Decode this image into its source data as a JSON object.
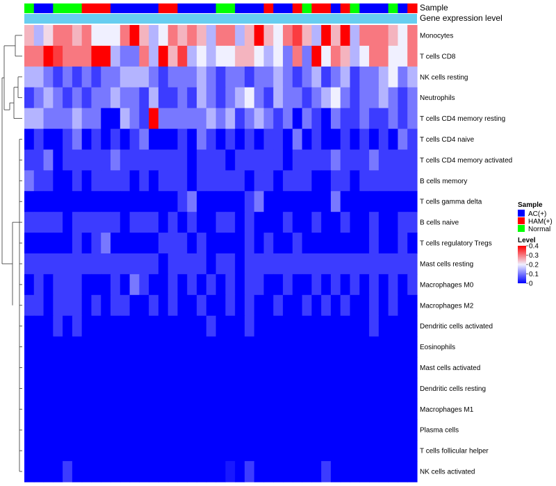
{
  "chart_data": {
    "type": "heatmap",
    "annotations": {
      "sample_label": "Sample",
      "expression_label": "Gene expression level",
      "sample_groups": [
        "N",
        "A",
        "A",
        "N",
        "N",
        "N",
        "H",
        "H",
        "H",
        "A",
        "A",
        "A",
        "A",
        "A",
        "H",
        "H",
        "A",
        "A",
        "A",
        "A",
        "N",
        "N",
        "A",
        "A",
        "A",
        "H",
        "A",
        "A",
        "H",
        "N",
        "H",
        "H",
        "A",
        "H",
        "N",
        "A",
        "A",
        "A",
        "N",
        "A",
        "H"
      ]
    },
    "rows": [
      {
        "label": "Monocytes",
        "values": [
          0.25,
          0.15,
          0.22,
          0.3,
          0.3,
          0.25,
          0.3,
          0.2,
          0.2,
          0.2,
          0.3,
          0.4,
          0.25,
          0.15,
          0.2,
          0.3,
          0.25,
          0.3,
          0.25,
          0.15,
          0.3,
          0.3,
          0.15,
          0.25,
          0.4,
          0.25,
          0.2,
          0.3,
          0.35,
          0.25,
          0.15,
          0.4,
          0.25,
          0.4,
          0.15,
          0.3,
          0.3,
          0.3,
          0.25,
          0.2,
          0.3
        ]
      },
      {
        "label": "T cells CD8",
        "values": [
          0.3,
          0.3,
          0.4,
          0.35,
          0.3,
          0.3,
          0.3,
          0.4,
          0.4,
          0.15,
          0.1,
          0.1,
          0.3,
          0.15,
          0.4,
          0.25,
          0.35,
          0.15,
          0.2,
          0.15,
          0.2,
          0.2,
          0.25,
          0.25,
          0.2,
          0.15,
          0.2,
          0.1,
          0.3,
          0.1,
          0.4,
          0.2,
          0.3,
          0.25,
          0.15,
          0.2,
          0.3,
          0.3,
          0.2,
          0.2,
          0.3
        ]
      },
      {
        "label": "NK cells resting",
        "values": [
          0.15,
          0.15,
          0.1,
          0.05,
          0.1,
          0.05,
          0.1,
          0.05,
          0.1,
          0.1,
          0.15,
          0.15,
          0.15,
          0.1,
          0.05,
          0.1,
          0.1,
          0.1,
          0.15,
          0.1,
          0.05,
          0.1,
          0.1,
          0.05,
          0.1,
          0.1,
          0.15,
          0.1,
          0.05,
          0.1,
          0.15,
          0.05,
          0.1,
          0.15,
          0.05,
          0.1,
          0.1,
          0.15,
          0.2,
          0.1,
          0.15
        ]
      },
      {
        "label": "Neutrophils",
        "values": [
          0.05,
          0.1,
          0.15,
          0.1,
          0.05,
          0.1,
          0.05,
          0.1,
          0.1,
          0.15,
          0.1,
          0.1,
          0.05,
          0.15,
          0.05,
          0.05,
          0.1,
          0.05,
          0.15,
          0.1,
          0.05,
          0.1,
          0.15,
          0.2,
          0.1,
          0.05,
          0.15,
          0.1,
          0.1,
          0.05,
          0.1,
          0.15,
          0.2,
          0.1,
          0.05,
          0.1,
          0.1,
          0.15,
          0.1,
          0.05,
          0.1
        ]
      },
      {
        "label": "T cells CD4 memory resting",
        "values": [
          0.15,
          0.15,
          0.1,
          0.1,
          0.1,
          0.15,
          0.1,
          0.1,
          0.0,
          0.0,
          0.15,
          0.1,
          0.05,
          0.4,
          0.1,
          0.1,
          0.1,
          0.1,
          0.1,
          0.15,
          0.1,
          0.15,
          0.05,
          0.1,
          0.15,
          0.1,
          0.05,
          0.1,
          0.0,
          0.1,
          0.05,
          0.0,
          0.1,
          0.05,
          0.05,
          0.1,
          0.05,
          0.05,
          0.1,
          0.05,
          0.1
        ]
      },
      {
        "label": "T cells CD4 naive",
        "values": [
          0.0,
          0.05,
          0.0,
          0.0,
          0.05,
          0.1,
          0.0,
          0.05,
          0.0,
          0.05,
          0.0,
          0.05,
          0.1,
          0.0,
          0.0,
          0.0,
          0.05,
          0.0,
          0.1,
          0.05,
          0.0,
          0.05,
          0.0,
          0.05,
          0.0,
          0.05,
          0.05,
          0.0,
          0.1,
          0.0,
          0.05,
          0.0,
          0.0,
          0.05,
          0.0,
          0.05,
          0.0,
          0.05,
          0.0,
          0.1,
          0.05
        ]
      },
      {
        "label": "T cells CD4 memory activated",
        "values": [
          0.05,
          0.05,
          0.1,
          0.0,
          0.05,
          0.05,
          0.05,
          0.05,
          0.05,
          0.1,
          0.05,
          0.05,
          0.05,
          0.05,
          0.05,
          0.05,
          0.05,
          0.0,
          0.05,
          0.05,
          0.05,
          0.0,
          0.05,
          0.05,
          0.05,
          0.05,
          0.05,
          0.0,
          0.05,
          0.05,
          0.05,
          0.05,
          0.1,
          0.05,
          0.05,
          0.05,
          0.1,
          0.05,
          0.05,
          0.05,
          0.05
        ]
      },
      {
        "label": "B cells memory",
        "values": [
          0.1,
          0.05,
          0.05,
          0.0,
          0.0,
          0.05,
          0.0,
          0.05,
          0.05,
          0.05,
          0.05,
          0.0,
          0.05,
          0.0,
          0.05,
          0.05,
          0.05,
          0.0,
          0.05,
          0.05,
          0.05,
          0.05,
          0.05,
          0.0,
          0.05,
          0.05,
          0.0,
          0.05,
          0.05,
          0.05,
          0.0,
          0.0,
          0.05,
          0.05,
          0.0,
          0.05,
          0.05,
          0.05,
          0.05,
          0.05,
          0.05
        ]
      },
      {
        "label": "T cells gamma delta",
        "values": [
          0.0,
          0.0,
          0.0,
          0.0,
          0.0,
          0.0,
          0.0,
          0.0,
          0.0,
          0.0,
          0.0,
          0.0,
          0.0,
          0.0,
          0.0,
          0.0,
          0.05,
          0.1,
          0.0,
          0.0,
          0.0,
          0.0,
          0.0,
          0.05,
          0.1,
          0.0,
          0.0,
          0.0,
          0.0,
          0.0,
          0.0,
          0.0,
          0.1,
          0.0,
          0.0,
          0.0,
          0.0,
          0.0,
          0.0,
          0.0,
          0.0
        ]
      },
      {
        "label": "B cells naive",
        "values": [
          0.05,
          0.05,
          0.05,
          0.05,
          0.0,
          0.05,
          0.05,
          0.05,
          0.05,
          0.05,
          0.0,
          0.05,
          0.05,
          0.05,
          0.0,
          0.05,
          0.0,
          0.05,
          0.0,
          0.0,
          0.05,
          0.05,
          0.0,
          0.05,
          0.0,
          0.0,
          0.0,
          0.05,
          0.0,
          0.0,
          0.05,
          0.0,
          0.0,
          0.05,
          0.0,
          0.0,
          0.05,
          0.0,
          0.0,
          0.05,
          0.05
        ]
      },
      {
        "label": "T cells regulatory  Tregs",
        "values": [
          0.0,
          0.0,
          0.0,
          0.0,
          0.0,
          0.05,
          0.0,
          0.05,
          0.1,
          0.0,
          0.0,
          0.0,
          0.0,
          0.0,
          0.05,
          0.05,
          0.05,
          0.0,
          0.05,
          0.0,
          0.0,
          0.0,
          0.0,
          0.05,
          0.0,
          0.05,
          0.0,
          0.0,
          0.05,
          0.0,
          0.0,
          0.0,
          0.0,
          0.0,
          0.0,
          0.0,
          0.05,
          0.0,
          0.0,
          0.05,
          0.0
        ]
      },
      {
        "label": "Mast cells resting",
        "values": [
          0.05,
          0.05,
          0.05,
          0.05,
          0.05,
          0.05,
          0.05,
          0.05,
          0.05,
          0.05,
          0.05,
          0.05,
          0.05,
          0.05,
          0.0,
          0.05,
          0.05,
          0.05,
          0.05,
          0.0,
          0.05,
          0.05,
          0.0,
          0.05,
          0.05,
          0.05,
          0.05,
          0.05,
          0.05,
          0.05,
          0.05,
          0.05,
          0.05,
          0.05,
          0.05,
          0.05,
          0.05,
          0.05,
          0.05,
          0.05,
          0.05
        ]
      },
      {
        "label": "Macrophages M0",
        "values": [
          0.0,
          0.05,
          0.0,
          0.05,
          0.05,
          0.05,
          0.0,
          0.0,
          0.0,
          0.05,
          0.0,
          0.1,
          0.05,
          0.0,
          0.0,
          0.05,
          0.0,
          0.05,
          0.0,
          0.05,
          0.0,
          0.05,
          0.0,
          0.05,
          0.05,
          0.0,
          0.0,
          0.05,
          0.0,
          0.0,
          0.05,
          0.0,
          0.05,
          0.0,
          0.05,
          0.0,
          0.05,
          0.0,
          0.05,
          0.0,
          0.05
        ]
      },
      {
        "label": "Macrophages M2",
        "values": [
          0.05,
          0.05,
          0.0,
          0.05,
          0.05,
          0.05,
          0.0,
          0.05,
          0.0,
          0.05,
          0.05,
          0.0,
          0.0,
          0.05,
          0.0,
          0.05,
          0.0,
          0.0,
          0.05,
          0.0,
          0.0,
          0.05,
          0.0,
          0.05,
          0.0,
          0.0,
          0.05,
          0.0,
          0.0,
          0.05,
          0.0,
          0.05,
          0.0,
          0.05,
          0.0,
          0.0,
          0.05,
          0.0,
          0.05,
          0.0,
          0.0
        ]
      },
      {
        "label": "Dendritic cells activated",
        "values": [
          0.0,
          0.0,
          0.0,
          0.05,
          0.0,
          0.05,
          0.0,
          0.0,
          0.0,
          0.0,
          0.0,
          0.0,
          0.0,
          0.0,
          0.0,
          0.0,
          0.0,
          0.0,
          0.0,
          0.05,
          0.0,
          0.0,
          0.0,
          0.05,
          0.0,
          0.0,
          0.0,
          0.0,
          0.0,
          0.0,
          0.0,
          0.0,
          0.0,
          0.0,
          0.0,
          0.0,
          0.05,
          0.0,
          0.0,
          0.0,
          0.0
        ]
      },
      {
        "label": "Eosinophils",
        "values": [
          0.0,
          0.0,
          0.0,
          0.0,
          0.0,
          0.0,
          0.0,
          0.0,
          0.0,
          0.0,
          0.0,
          0.0,
          0.0,
          0.0,
          0.0,
          0.0,
          0.0,
          0.0,
          0.0,
          0.0,
          0.0,
          0.0,
          0.0,
          0.0,
          0.0,
          0.0,
          0.0,
          0.0,
          0.0,
          0.0,
          0.0,
          0.0,
          0.0,
          0.0,
          0.0,
          0.0,
          0.0,
          0.0,
          0.0,
          0.0,
          0.0
        ]
      },
      {
        "label": "Mast cells activated",
        "values": [
          0.0,
          0.0,
          0.0,
          0.0,
          0.0,
          0.0,
          0.0,
          0.0,
          0.0,
          0.0,
          0.0,
          0.0,
          0.0,
          0.0,
          0.0,
          0.0,
          0.0,
          0.0,
          0.0,
          0.0,
          0.0,
          0.0,
          0.0,
          0.0,
          0.0,
          0.0,
          0.0,
          0.0,
          0.0,
          0.0,
          0.0,
          0.0,
          0.0,
          0.0,
          0.0,
          0.0,
          0.0,
          0.0,
          0.0,
          0.0,
          0.0
        ]
      },
      {
        "label": "Dendritic cells resting",
        "values": [
          0.0,
          0.0,
          0.0,
          0.0,
          0.0,
          0.0,
          0.0,
          0.0,
          0.0,
          0.0,
          0.0,
          0.0,
          0.0,
          0.0,
          0.0,
          0.0,
          0.0,
          0.0,
          0.0,
          0.0,
          0.0,
          0.0,
          0.0,
          0.0,
          0.0,
          0.0,
          0.0,
          0.0,
          0.0,
          0.0,
          0.0,
          0.0,
          0.0,
          0.0,
          0.0,
          0.0,
          0.0,
          0.0,
          0.0,
          0.0,
          0.0
        ]
      },
      {
        "label": "Macrophages M1",
        "values": [
          0.0,
          0.0,
          0.0,
          0.0,
          0.0,
          0.0,
          0.0,
          0.0,
          0.0,
          0.0,
          0.0,
          0.0,
          0.0,
          0.0,
          0.0,
          0.0,
          0.0,
          0.0,
          0.0,
          0.0,
          0.0,
          0.0,
          0.0,
          0.0,
          0.0,
          0.0,
          0.0,
          0.0,
          0.0,
          0.0,
          0.0,
          0.0,
          0.0,
          0.0,
          0.0,
          0.0,
          0.0,
          0.0,
          0.0,
          0.0,
          0.0
        ]
      },
      {
        "label": "Plasma cells",
        "values": [
          0.0,
          0.0,
          0.0,
          0.0,
          0.0,
          0.0,
          0.0,
          0.0,
          0.0,
          0.0,
          0.0,
          0.0,
          0.0,
          0.0,
          0.0,
          0.0,
          0.0,
          0.0,
          0.0,
          0.0,
          0.0,
          0.0,
          0.0,
          0.0,
          0.0,
          0.0,
          0.0,
          0.0,
          0.0,
          0.0,
          0.0,
          0.0,
          0.0,
          0.0,
          0.0,
          0.0,
          0.0,
          0.0,
          0.0,
          0.0,
          0.0
        ]
      },
      {
        "label": "T cells follicular helper",
        "values": [
          0.0,
          0.0,
          0.0,
          0.0,
          0.0,
          0.0,
          0.0,
          0.0,
          0.0,
          0.0,
          0.0,
          0.0,
          0.0,
          0.0,
          0.0,
          0.0,
          0.0,
          0.0,
          0.0,
          0.0,
          0.0,
          0.0,
          0.0,
          0.0,
          0.0,
          0.0,
          0.0,
          0.0,
          0.0,
          0.0,
          0.0,
          0.0,
          0.0,
          0.0,
          0.0,
          0.0,
          0.0,
          0.0,
          0.0,
          0.0,
          0.0
        ]
      },
      {
        "label": "NK cells activated",
        "values": [
          0.0,
          0.0,
          0.0,
          0.0,
          0.05,
          0.0,
          0.0,
          0.0,
          0.0,
          0.0,
          0.0,
          0.0,
          0.0,
          0.0,
          0.0,
          0.0,
          0.0,
          0.0,
          0.0,
          0.0,
          0.0,
          0.02,
          0.0,
          0.05,
          0.0,
          0.0,
          0.0,
          0.0,
          0.0,
          0.0,
          0.0,
          0.05,
          0.0,
          0.0,
          0.0,
          0.0,
          0.0,
          0.0,
          0.0,
          0.0,
          0.0
        ]
      }
    ],
    "legend_sample": {
      "title": "Sample",
      "items": [
        {
          "label": "AC(+)",
          "code": "A",
          "color": "#0000ff"
        },
        {
          "label": "HAM(+)",
          "code": "H",
          "color": "#ff0000"
        },
        {
          "label": "Normal",
          "code": "N",
          "color": "#00ff00"
        }
      ]
    },
    "legend_level": {
      "title": "Level",
      "range": [
        0,
        0.4
      ],
      "ticks": [
        {
          "value": 0.4,
          "label": "0.4"
        },
        {
          "value": 0.3,
          "label": "0.3"
        },
        {
          "value": 0.2,
          "label": "0.2"
        },
        {
          "value": 0.1,
          "label": "0.1"
        },
        {
          "value": 0,
          "label": "0"
        }
      ],
      "colors": {
        "low": "#0000ff",
        "mid": "#f0f0ff",
        "high": "#ff0000"
      }
    },
    "expression_bar_color": "#67cdf0"
  }
}
